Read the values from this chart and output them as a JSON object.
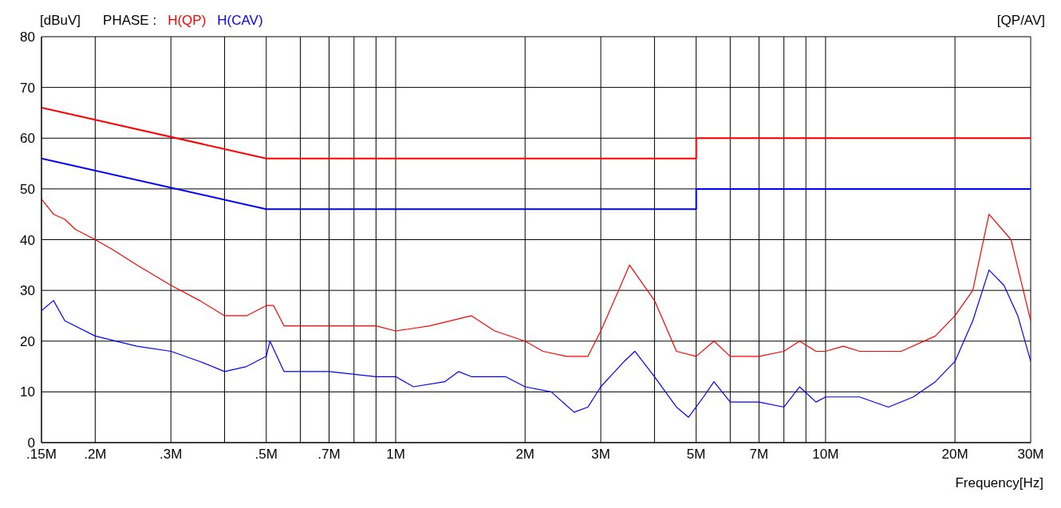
{
  "chart_data": {
    "type": "line",
    "ylabel": "[dBuV]",
    "xlabel": "Frequency[Hz]",
    "legend_title": "PHASE :",
    "annotations": [
      "[QP/AV]"
    ],
    "log": "x",
    "grid": true,
    "legend": "top left",
    "marker": "none",
    "line_style": "solid",
    "xlim": [
      0.15,
      30
    ],
    "ylim": [
      0,
      80
    ],
    "yticks": [
      0,
      10,
      20,
      30,
      40,
      50,
      60,
      70,
      80
    ],
    "xticks": [
      {
        "value": 0.15,
        "label": ".15M"
      },
      {
        "value": 0.2,
        "label": ".2M"
      },
      {
        "value": 0.3,
        "label": ".3M"
      },
      {
        "value": 0.4,
        "label": null
      },
      {
        "value": 0.5,
        "label": ".5M"
      },
      {
        "value": 0.6,
        "label": null
      },
      {
        "value": 0.7,
        "label": ".7M"
      },
      {
        "value": 0.8,
        "label": null
      },
      {
        "value": 0.9,
        "label": null
      },
      {
        "value": 1,
        "label": "1M"
      },
      {
        "value": 2,
        "label": "2M"
      },
      {
        "value": 3,
        "label": "3M"
      },
      {
        "value": 4,
        "label": null
      },
      {
        "value": 5,
        "label": "5M"
      },
      {
        "value": 6,
        "label": null
      },
      {
        "value": 7,
        "label": "7M"
      },
      {
        "value": 8,
        "label": null
      },
      {
        "value": 9,
        "label": null
      },
      {
        "value": 10,
        "label": "10M"
      },
      {
        "value": 20,
        "label": "20M"
      },
      {
        "value": 30,
        "label": "30M"
      }
    ],
    "series": [
      {
        "color": "#ff0000",
        "x": [
          0.15,
          0.5,
          5,
          5,
          30
        ],
        "values": [
          66,
          56,
          56,
          60,
          60
        ]
      },
      {
        "color": "#0000ff",
        "x": [
          0.15,
          0.5,
          5,
          5,
          30
        ],
        "values": [
          56,
          46,
          46,
          50,
          50
        ]
      },
      {
        "name": "H(QP)",
        "color": "#ff0000",
        "x": [
          0.15,
          0.16,
          0.17,
          0.18,
          0.2,
          0.22,
          0.25,
          0.3,
          0.35,
          0.4,
          0.45,
          0.5,
          0.52,
          0.55,
          0.6,
          0.7,
          0.8,
          0.9,
          1,
          1.2,
          1.5,
          1.7,
          2,
          2.2,
          2.5,
          2.8,
          3,
          3.3,
          3.5,
          4,
          4.5,
          5,
          5.5,
          6,
          7,
          8,
          8.7,
          9.5,
          10,
          11,
          12,
          15,
          18,
          20,
          22,
          24,
          27,
          30
        ],
        "values": [
          48,
          45,
          44,
          42,
          40,
          38,
          35,
          31,
          28,
          25,
          25,
          27,
          27,
          23,
          23,
          23,
          23,
          23,
          22,
          23,
          25,
          22,
          20,
          18,
          17,
          17,
          22,
          30,
          35,
          28,
          18,
          17,
          20,
          17,
          17,
          18,
          20,
          18,
          18,
          19,
          18,
          18,
          21,
          25,
          30,
          45,
          40,
          24
        ]
      },
      {
        "name": "H(CAV)",
        "color": "#0000ff",
        "x": [
          0.15,
          0.16,
          0.17,
          0.2,
          0.25,
          0.3,
          0.35,
          0.4,
          0.45,
          0.5,
          0.51,
          0.55,
          0.7,
          0.9,
          1,
          1.1,
          1.3,
          1.4,
          1.5,
          1.8,
          2,
          2.3,
          2.6,
          2.8,
          3,
          3.4,
          3.6,
          4,
          4.5,
          4.8,
          5.2,
          5.5,
          6,
          7,
          8,
          8.7,
          9.5,
          10,
          12,
          14,
          16,
          18,
          20,
          22,
          24,
          26,
          28,
          30
        ],
        "values": [
          26,
          28,
          24,
          21,
          19,
          18,
          16,
          14,
          15,
          17,
          20,
          14,
          14,
          13,
          13,
          11,
          12,
          14,
          13,
          13,
          11,
          10,
          6,
          7,
          11,
          16,
          18,
          13,
          7,
          5,
          9,
          12,
          8,
          8,
          7,
          11,
          8,
          9,
          9,
          7,
          9,
          12,
          16,
          24,
          34,
          31,
          25,
          16
        ]
      }
    ]
  }
}
